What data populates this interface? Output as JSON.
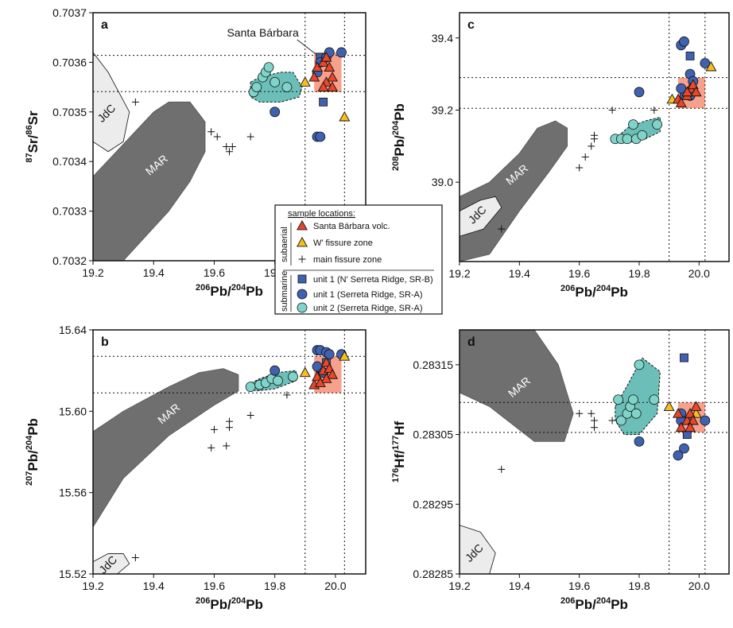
{
  "colors": {
    "red_tri": "#e8472a",
    "yellow_tri": "#f7be1e",
    "blue": "#3f61b0",
    "teal": "#7fd3c9",
    "teal_field": "#6bbfb8",
    "mar": "#6f6f6f",
    "jdc": "#e0e0e0",
    "box": "#f7a08c"
  },
  "legend": {
    "title": "sample locations:",
    "group_subaerial": "subaerial",
    "group_submarine": "submarine",
    "items": [
      {
        "label": "Santa Bárbara volc.",
        "marker": "tri-red"
      },
      {
        "label": "W' fissure zone",
        "marker": "tri-yellow"
      },
      {
        "label": "main fissure zone",
        "marker": "plus"
      },
      {
        "label": "unit 1 (N' Serreta Ridge, SR-B)",
        "marker": "square-blue"
      },
      {
        "label": "unit 1 (Serreta Ridge, SR-A)",
        "marker": "circle-blue"
      },
      {
        "label": "unit 2 (Serreta Ridge, SR-A)",
        "marker": "circle-teal"
      }
    ]
  },
  "chart_data": [
    {
      "panel": "a",
      "type": "scatter",
      "xlabel_iso": "206",
      "xlabel_el": "Pb",
      "xlabel_iso2": "204",
      "xlabel_el2": "Pb",
      "ylabel_iso": "87",
      "ylabel_el": "Sr",
      "ylabel_iso2": "86",
      "ylabel_el2": "Sr",
      "xlim": [
        19.2,
        20.1
      ],
      "ylim": [
        0.7032,
        0.7037
      ],
      "xticks": [
        "19.2",
        "19.4",
        "19.6",
        "19.8",
        "20.0"
      ],
      "yticks": [
        "0.7032",
        "0.7033",
        "0.7034",
        "0.7035",
        "0.7036",
        "0.7037"
      ],
      "annotation": "Santa Bárbara",
      "field_labels": {
        "mar": "MAR",
        "jdc": "JdC"
      },
      "vlines": [
        19.9,
        20.03
      ],
      "hlines": [
        0.703614,
        0.703541
      ],
      "box": [
        19.93,
        20.02,
        0.70354,
        0.70362
      ],
      "mar": [
        [
          19.2,
          0.70337
        ],
        [
          19.4,
          0.7035
        ],
        [
          19.45,
          0.70352
        ],
        [
          19.52,
          0.70352
        ],
        [
          19.57,
          0.70348
        ],
        [
          19.57,
          0.70342
        ],
        [
          19.52,
          0.70336
        ],
        [
          19.45,
          0.7033
        ],
        [
          19.3,
          0.7032
        ],
        [
          19.2,
          0.7032
        ]
      ],
      "jdc": [
        [
          19.2,
          0.70362
        ],
        [
          19.25,
          0.70358
        ],
        [
          19.32,
          0.7035
        ],
        [
          19.3,
          0.70344
        ],
        [
          19.25,
          0.70342
        ],
        [
          19.2,
          0.70344
        ]
      ],
      "teal_field": [
        [
          19.72,
          0.70356
        ],
        [
          19.75,
          0.70357
        ],
        [
          19.82,
          0.70358
        ],
        [
          19.86,
          0.70358
        ],
        [
          19.89,
          0.70355
        ],
        [
          19.88,
          0.70353
        ],
        [
          19.82,
          0.70352
        ],
        [
          19.75,
          0.70352
        ],
        [
          19.72,
          0.70353
        ]
      ],
      "series": {
        "tri-red": [
          [
            19.93,
            0.70357
          ],
          [
            19.94,
            0.70359
          ],
          [
            19.96,
            0.7036
          ],
          [
            19.97,
            0.70361
          ],
          [
            19.98,
            0.70359
          ],
          [
            19.99,
            0.70357
          ],
          [
            19.97,
            0.70356
          ],
          [
            19.99,
            0.70355
          ],
          [
            19.96,
            0.70355
          ]
        ],
        "tri-yellow": [
          [
            19.9,
            0.70356
          ],
          [
            20.03,
            0.70349
          ]
        ],
        "plus": [
          [
            19.34,
            0.70352
          ],
          [
            19.59,
            0.70346
          ],
          [
            19.61,
            0.70345
          ],
          [
            19.64,
            0.70343
          ],
          [
            19.65,
            0.70342
          ],
          [
            19.66,
            0.70343
          ],
          [
            19.72,
            0.70345
          ]
        ],
        "square-blue": [
          [
            19.95,
            0.70361
          ],
          [
            19.96,
            0.70352
          ]
        ],
        "circle-blue": [
          [
            19.94,
            0.70358
          ],
          [
            19.95,
            0.7036
          ],
          [
            19.97,
            0.70361
          ],
          [
            19.98,
            0.70362
          ],
          [
            20.02,
            0.70362
          ],
          [
            19.8,
            0.7035
          ],
          [
            19.94,
            0.70345
          ],
          [
            19.95,
            0.70345
          ]
        ],
        "circle-teal": [
          [
            19.73,
            0.70354
          ],
          [
            19.74,
            0.70355
          ],
          [
            19.76,
            0.70357
          ],
          [
            19.77,
            0.70358
          ],
          [
            19.78,
            0.70359
          ],
          [
            19.8,
            0.70356
          ],
          [
            19.84,
            0.70355
          ]
        ]
      }
    },
    {
      "panel": "b",
      "type": "scatter",
      "xlabel_iso": "206",
      "xlabel_el": "Pb",
      "xlabel_iso2": "204",
      "xlabel_el2": "Pb",
      "ylabel_iso": "207",
      "ylabel_el": "Pb",
      "ylabel_iso2": "204",
      "ylabel_el2": "Pb",
      "xlim": [
        19.2,
        20.1
      ],
      "ylim": [
        15.52,
        15.64
      ],
      "xticks": [
        "19.2",
        "19.4",
        "19.6",
        "19.8",
        "20.0"
      ],
      "yticks": [
        "15.52",
        "15.56",
        "15.60",
        "15.64"
      ],
      "field_labels": {
        "mar": "MAR",
        "jdc": "JdC"
      },
      "vlines": [
        19.9,
        20.03
      ],
      "hlines": [
        15.627,
        15.609
      ],
      "box": [
        19.93,
        20.02,
        15.609,
        15.627
      ],
      "mar": [
        [
          19.2,
          15.59
        ],
        [
          19.3,
          15.6
        ],
        [
          19.45,
          15.612
        ],
        [
          19.55,
          15.619
        ],
        [
          19.63,
          15.621
        ],
        [
          19.68,
          15.618
        ],
        [
          19.68,
          15.61
        ],
        [
          19.6,
          15.603
        ],
        [
          19.45,
          15.588
        ],
        [
          19.3,
          15.567
        ],
        [
          19.2,
          15.543
        ]
      ],
      "jdc": [
        [
          19.2,
          15.526
        ],
        [
          19.25,
          15.53
        ],
        [
          19.3,
          15.53
        ],
        [
          19.32,
          15.525
        ],
        [
          19.28,
          15.52
        ],
        [
          19.2,
          15.52
        ]
      ],
      "teal_field": [
        [
          19.71,
          15.613
        ],
        [
          19.75,
          15.616
        ],
        [
          19.81,
          15.619
        ],
        [
          19.87,
          15.62
        ],
        [
          19.87,
          15.615
        ],
        [
          19.8,
          15.611
        ],
        [
          19.74,
          15.61
        ],
        [
          19.71,
          15.611
        ]
      ],
      "series": {
        "tri-red": [
          [
            19.93,
            15.613
          ],
          [
            19.94,
            15.617
          ],
          [
            19.96,
            15.62
          ],
          [
            19.97,
            15.624
          ],
          [
            19.98,
            15.621
          ],
          [
            19.99,
            15.618
          ],
          [
            19.97,
            15.616
          ],
          [
            19.95,
            15.614
          ]
        ],
        "tri-yellow": [
          [
            19.9,
            15.619
          ],
          [
            20.03,
            15.627
          ]
        ],
        "plus": [
          [
            19.34,
            15.528
          ],
          [
            19.59,
            15.582
          ],
          [
            19.6,
            15.591
          ],
          [
            19.64,
            15.583
          ],
          [
            19.65,
            15.592
          ],
          [
            19.65,
            15.595
          ],
          [
            19.72,
            15.598
          ],
          [
            19.84,
            15.608
          ]
        ],
        "square-blue": [
          [
            19.95,
            15.621
          ],
          [
            19.97,
            15.624
          ]
        ],
        "circle-blue": [
          [
            19.94,
            15.63
          ],
          [
            19.95,
            15.63
          ],
          [
            19.97,
            15.629
          ],
          [
            19.98,
            15.628
          ],
          [
            20.02,
            15.628
          ],
          [
            19.8,
            15.62
          ],
          [
            19.94,
            15.622
          ],
          [
            19.96,
            15.619
          ]
        ],
        "circle-teal": [
          [
            19.72,
            15.612
          ],
          [
            19.75,
            15.613
          ],
          [
            19.77,
            15.614
          ],
          [
            19.79,
            15.616
          ],
          [
            19.81,
            15.615
          ],
          [
            19.86,
            15.617
          ]
        ]
      }
    },
    {
      "panel": "c",
      "type": "scatter",
      "xlabel_iso": "206",
      "xlabel_el": "Pb",
      "xlabel_iso2": "204",
      "xlabel_el2": "Pb",
      "ylabel_iso": "208",
      "ylabel_el": "Pb",
      "ylabel_iso2": "204",
      "ylabel_el2": "Pb",
      "xlim": [
        19.2,
        20.1
      ],
      "ylim": [
        38.78,
        39.47
      ],
      "xticks": [
        "19.2",
        "19.4",
        "19.6",
        "19.8",
        "20.0"
      ],
      "yticks": [
        "39.0",
        "39.2",
        "39.4"
      ],
      "field_labels": {
        "mar": "MAR",
        "jdc": "JdC"
      },
      "vlines": [
        19.9,
        20.02
      ],
      "hlines": [
        39.29,
        39.205
      ],
      "box": [
        19.93,
        20.02,
        39.205,
        39.29
      ],
      "mar": [
        [
          19.2,
          38.96
        ],
        [
          19.3,
          39.0
        ],
        [
          19.4,
          39.08
        ],
        [
          19.46,
          39.15
        ],
        [
          19.52,
          39.17
        ],
        [
          19.56,
          39.15
        ],
        [
          19.56,
          39.1
        ],
        [
          19.5,
          39.03
        ],
        [
          19.4,
          38.92
        ],
        [
          19.3,
          38.8
        ],
        [
          19.2,
          38.78
        ]
      ],
      "jdc": [
        [
          19.2,
          38.92
        ],
        [
          19.27,
          38.95
        ],
        [
          19.32,
          38.96
        ],
        [
          19.34,
          38.93
        ],
        [
          19.28,
          38.87
        ],
        [
          19.2,
          38.85
        ]
      ],
      "teal_field": [
        [
          19.72,
          39.12
        ],
        [
          19.76,
          39.15
        ],
        [
          19.82,
          39.17
        ],
        [
          19.87,
          39.18
        ],
        [
          19.87,
          39.14
        ],
        [
          19.82,
          39.12
        ],
        [
          19.76,
          39.11
        ],
        [
          19.72,
          39.11
        ]
      ],
      "series": {
        "tri-red": [
          [
            19.93,
            39.23
          ],
          [
            19.94,
            39.22
          ],
          [
            19.96,
            39.24
          ],
          [
            19.97,
            39.26
          ],
          [
            19.98,
            39.27
          ],
          [
            19.99,
            39.25
          ],
          [
            19.96,
            39.25
          ]
        ],
        "tri-yellow": [
          [
            19.91,
            39.23
          ],
          [
            20.04,
            39.32
          ]
        ],
        "plus": [
          [
            19.34,
            38.87
          ],
          [
            19.6,
            39.04
          ],
          [
            19.62,
            39.07
          ],
          [
            19.64,
            39.1
          ],
          [
            19.65,
            39.13
          ],
          [
            19.65,
            39.12
          ],
          [
            19.71,
            39.2
          ],
          [
            19.85,
            39.2
          ]
        ],
        "square-blue": [
          [
            19.95,
            39.24
          ],
          [
            19.97,
            39.35
          ]
        ],
        "circle-blue": [
          [
            19.94,
            39.38
          ],
          [
            19.95,
            39.39
          ],
          [
            19.97,
            39.3
          ],
          [
            19.98,
            39.28
          ],
          [
            20.02,
            39.33
          ],
          [
            19.8,
            39.25
          ],
          [
            19.94,
            39.26
          ],
          [
            19.97,
            39.24
          ]
        ],
        "circle-teal": [
          [
            19.72,
            39.12
          ],
          [
            19.74,
            39.12
          ],
          [
            19.76,
            39.12
          ],
          [
            19.78,
            39.16
          ],
          [
            19.79,
            39.12
          ],
          [
            19.81,
            39.13
          ],
          [
            19.86,
            39.16
          ]
        ]
      }
    },
    {
      "panel": "d",
      "type": "scatter",
      "xlabel_iso": "206",
      "xlabel_el": "Pb",
      "xlabel_iso2": "204",
      "xlabel_el2": "Pb",
      "ylabel_iso": "176",
      "ylabel_el": "Hf",
      "ylabel_iso2": "177",
      "ylabel_el2": "Hf",
      "xlim": [
        19.2,
        20.1
      ],
      "ylim": [
        0.28285,
        0.2832
      ],
      "xticks": [
        "19.2",
        "19.4",
        "19.6",
        "19.8",
        "20.0"
      ],
      "yticks": [
        "0.28285",
        "0.28295",
        "0.28305",
        "0.28315"
      ],
      "field_labels": {
        "mar": "MAR",
        "jdc": "JdC"
      },
      "vlines": [
        19.9,
        20.02
      ],
      "hlines": [
        0.283096,
        0.283053
      ],
      "box": [
        19.93,
        20.02,
        0.283053,
        0.283096
      ],
      "mar": [
        [
          19.2,
          0.2832
        ],
        [
          19.45,
          0.2832
        ],
        [
          19.53,
          0.28315
        ],
        [
          19.58,
          0.28308
        ],
        [
          19.55,
          0.28304
        ],
        [
          19.45,
          0.28304
        ],
        [
          19.3,
          0.28309
        ],
        [
          19.2,
          0.28311
        ]
      ],
      "jdc": [
        [
          19.2,
          0.28292
        ],
        [
          19.27,
          0.28291
        ],
        [
          19.32,
          0.28288
        ],
        [
          19.3,
          0.28285
        ],
        [
          19.2,
          0.28285
        ]
      ],
      "teal_field": [
        [
          19.72,
          0.28309
        ],
        [
          19.76,
          0.28312
        ],
        [
          19.81,
          0.28316
        ],
        [
          19.87,
          0.28314
        ],
        [
          19.86,
          0.28308
        ],
        [
          19.8,
          0.28305
        ],
        [
          19.75,
          0.28305
        ],
        [
          19.72,
          0.28307
        ]
      ],
      "series": {
        "tri-red": [
          [
            19.93,
            0.28308
          ],
          [
            19.94,
            0.28306
          ],
          [
            19.96,
            0.28307
          ],
          [
            19.97,
            0.28308
          ],
          [
            19.98,
            0.28307
          ],
          [
            19.99,
            0.28309
          ],
          [
            19.97,
            0.28306
          ]
        ],
        "tri-yellow": [
          [
            19.9,
            0.28309
          ],
          [
            19.99,
            0.28308
          ]
        ],
        "plus": [
          [
            19.34,
            0.283
          ],
          [
            19.6,
            0.28308
          ],
          [
            19.64,
            0.28308
          ],
          [
            19.65,
            0.28307
          ],
          [
            19.65,
            0.28306
          ],
          [
            19.71,
            0.28307
          ]
        ],
        "square-blue": [
          [
            19.95,
            0.28316
          ],
          [
            19.96,
            0.28305
          ]
        ],
        "circle-blue": [
          [
            19.94,
            0.28308
          ],
          [
            19.95,
            0.28303
          ],
          [
            19.93,
            0.28302
          ],
          [
            19.97,
            0.28307
          ],
          [
            20.02,
            0.28307
          ],
          [
            19.8,
            0.28304
          ],
          [
            19.94,
            0.28307
          ]
        ],
        "circle-teal": [
          [
            19.73,
            0.2831
          ],
          [
            19.74,
            0.28307
          ],
          [
            19.76,
            0.28308
          ],
          [
            19.77,
            0.28309
          ],
          [
            19.78,
            0.2831
          ],
          [
            19.8,
            0.28315
          ],
          [
            19.79,
            0.28308
          ],
          [
            19.85,
            0.2831
          ]
        ]
      }
    }
  ]
}
